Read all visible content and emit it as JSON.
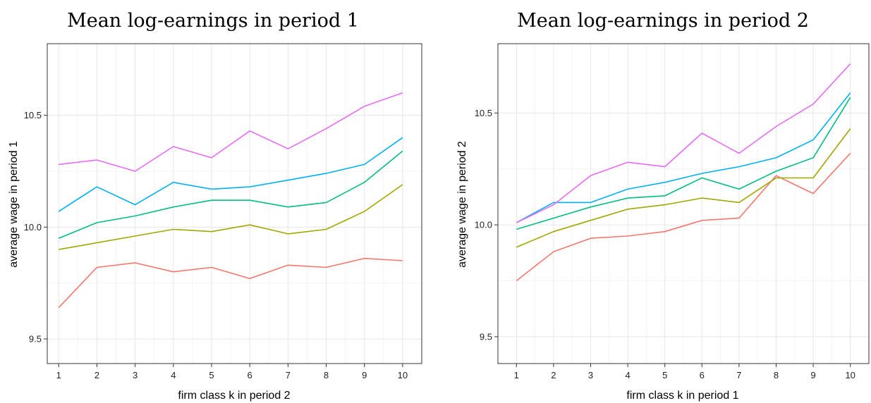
{
  "chart_data": [
    {
      "type": "line",
      "title": "Mean log-earnings in period 1",
      "xlabel": "firm class k in period 2",
      "ylabel": "average wage in period 1",
      "x": [
        1,
        2,
        3,
        4,
        5,
        6,
        7,
        8,
        9,
        10
      ],
      "xlim": [
        0.7,
        10.5
      ],
      "ylim": [
        9.39,
        10.82
      ],
      "yticks": [
        9.5,
        10.0,
        10.5
      ],
      "ytick_labels": [
        "9.5",
        "10.0",
        "10.5"
      ],
      "grid": true,
      "series": [
        {
          "color": "#F8766D",
          "values": [
            9.64,
            9.82,
            9.84,
            9.8,
            9.82,
            9.77,
            9.83,
            9.82,
            9.86,
            9.85
          ]
        },
        {
          "color": "#A3A500",
          "values": [
            9.9,
            9.93,
            9.96,
            9.99,
            9.98,
            10.01,
            9.97,
            9.99,
            10.07,
            10.19
          ]
        },
        {
          "color": "#00BF7D",
          "values": [
            9.95,
            10.02,
            10.05,
            10.09,
            10.12,
            10.12,
            10.09,
            10.11,
            10.2,
            10.34
          ]
        },
        {
          "color": "#00B0F6",
          "values": [
            10.07,
            10.18,
            10.1,
            10.2,
            10.17,
            10.18,
            10.21,
            10.24,
            10.28,
            10.4
          ]
        },
        {
          "color": "#E76BF3",
          "values": [
            10.28,
            10.3,
            10.25,
            10.36,
            10.31,
            10.43,
            10.35,
            10.44,
            10.54,
            10.6
          ]
        }
      ]
    },
    {
      "type": "line",
      "title": "Mean log-earnings in period 2",
      "xlabel": "firm class k in period 1",
      "ylabel": "average wage in period 2",
      "x": [
        1,
        2,
        3,
        4,
        5,
        6,
        7,
        8,
        9,
        10
      ],
      "xlim": [
        0.5,
        10.5
      ],
      "ylim": [
        9.38,
        10.81
      ],
      "yticks": [
        9.5,
        10.0,
        10.5
      ],
      "ytick_labels": [
        "9.5",
        "10.0",
        "10.5"
      ],
      "grid": true,
      "series": [
        {
          "color": "#F8766D",
          "values": [
            9.75,
            9.88,
            9.94,
            9.95,
            9.97,
            10.02,
            10.03,
            10.22,
            10.14,
            10.32
          ]
        },
        {
          "color": "#A3A500",
          "values": [
            9.9,
            9.97,
            10.02,
            10.07,
            10.09,
            10.12,
            10.1,
            10.21,
            10.21,
            10.43
          ]
        },
        {
          "color": "#00BF7D",
          "values": [
            9.98,
            10.03,
            10.08,
            10.12,
            10.13,
            10.21,
            10.16,
            10.24,
            10.3,
            10.57
          ]
        },
        {
          "color": "#00B0F6",
          "values": [
            10.01,
            10.1,
            10.1,
            10.16,
            10.19,
            10.23,
            10.26,
            10.3,
            10.38,
            10.59
          ]
        },
        {
          "color": "#E76BF3",
          "values": [
            10.01,
            10.09,
            10.22,
            10.28,
            10.26,
            10.41,
            10.32,
            10.44,
            10.54,
            10.72
          ]
        }
      ]
    }
  ]
}
